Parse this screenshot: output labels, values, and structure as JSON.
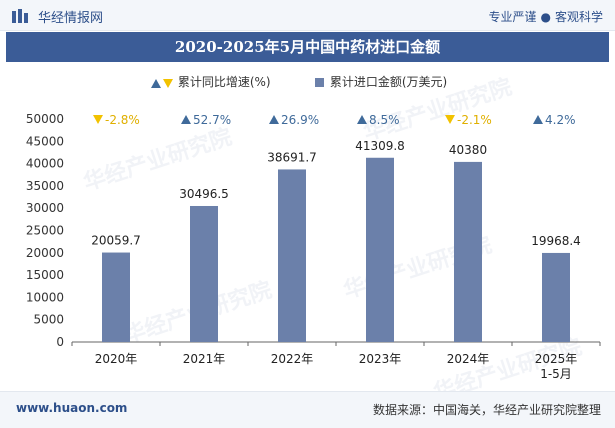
{
  "header": {
    "brand": "华经情报网",
    "slogan_left": "专业严谨",
    "slogan_right": "客观科学"
  },
  "title": "2020-2025年5月中国中药材进口金额",
  "legend": {
    "growth": "累计同比增速(%)",
    "amount": "累计进口金额(万美元)"
  },
  "footer": {
    "site": "www.huaon.com",
    "source": "数据来源：中国海关，华经产业研究院整理"
  },
  "watermark": "华经产业研究院",
  "colors": {
    "bar": "#6b80aa",
    "up": "#3f6a9a",
    "down": "#f2c200",
    "title_bg": "#3b5c97"
  },
  "chart_data": {
    "type": "bar",
    "categories": [
      "2020年",
      "2021年",
      "2022年",
      "2023年",
      "2024年",
      "2025年\n1-5月"
    ],
    "series": [
      {
        "name": "累计进口金额(万美元)",
        "values": [
          20059.7,
          30496.5,
          38691.7,
          41309.8,
          40380,
          19968.4
        ],
        "labels": [
          "20059.7",
          "30496.5",
          "38691.7",
          "41309.8",
          "40380",
          "19968.4"
        ]
      },
      {
        "name": "累计同比增速(%)",
        "values": [
          -2.8,
          52.7,
          26.9,
          8.5,
          -2.1,
          4.2
        ],
        "labels": [
          "-2.8%",
          "52.7%",
          "26.9%",
          "8.5%",
          "-2.1%",
          "4.2%"
        ]
      }
    ],
    "yticks": [
      "0",
      "5000",
      "10000",
      "15000",
      "20000",
      "25000",
      "30000",
      "35000",
      "40000",
      "45000",
      "50000"
    ],
    "ylim": [
      0,
      50000
    ],
    "grid": false
  }
}
